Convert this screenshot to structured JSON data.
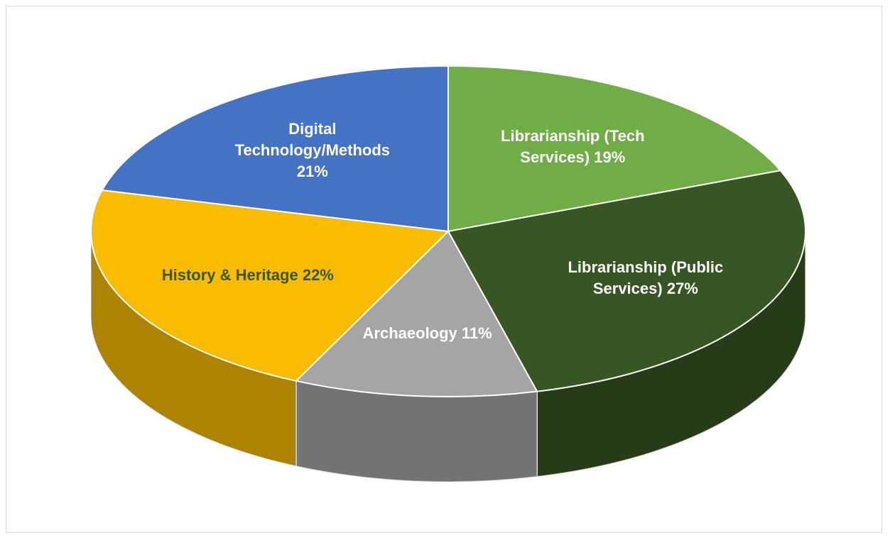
{
  "chart_data": {
    "type": "pie",
    "categories": [
      "Librarianship (Tech Services)",
      "Librarianship (Public Services)",
      "Archaeology",
      "History & Heritage",
      "Digital Technology/Methods"
    ],
    "values": [
      19,
      27,
      11,
      22,
      21
    ],
    "value_labels": [
      "19%",
      "27%",
      "11%",
      "22%",
      "21%"
    ],
    "colors": [
      "#70ad47",
      "#375623",
      "#a5a5a5",
      "#f9bc00",
      "#4472c4"
    ],
    "label_colors": [
      "#ffffff",
      "#ffffff",
      "#ffffff",
      "#375623",
      "#ffffff"
    ]
  }
}
